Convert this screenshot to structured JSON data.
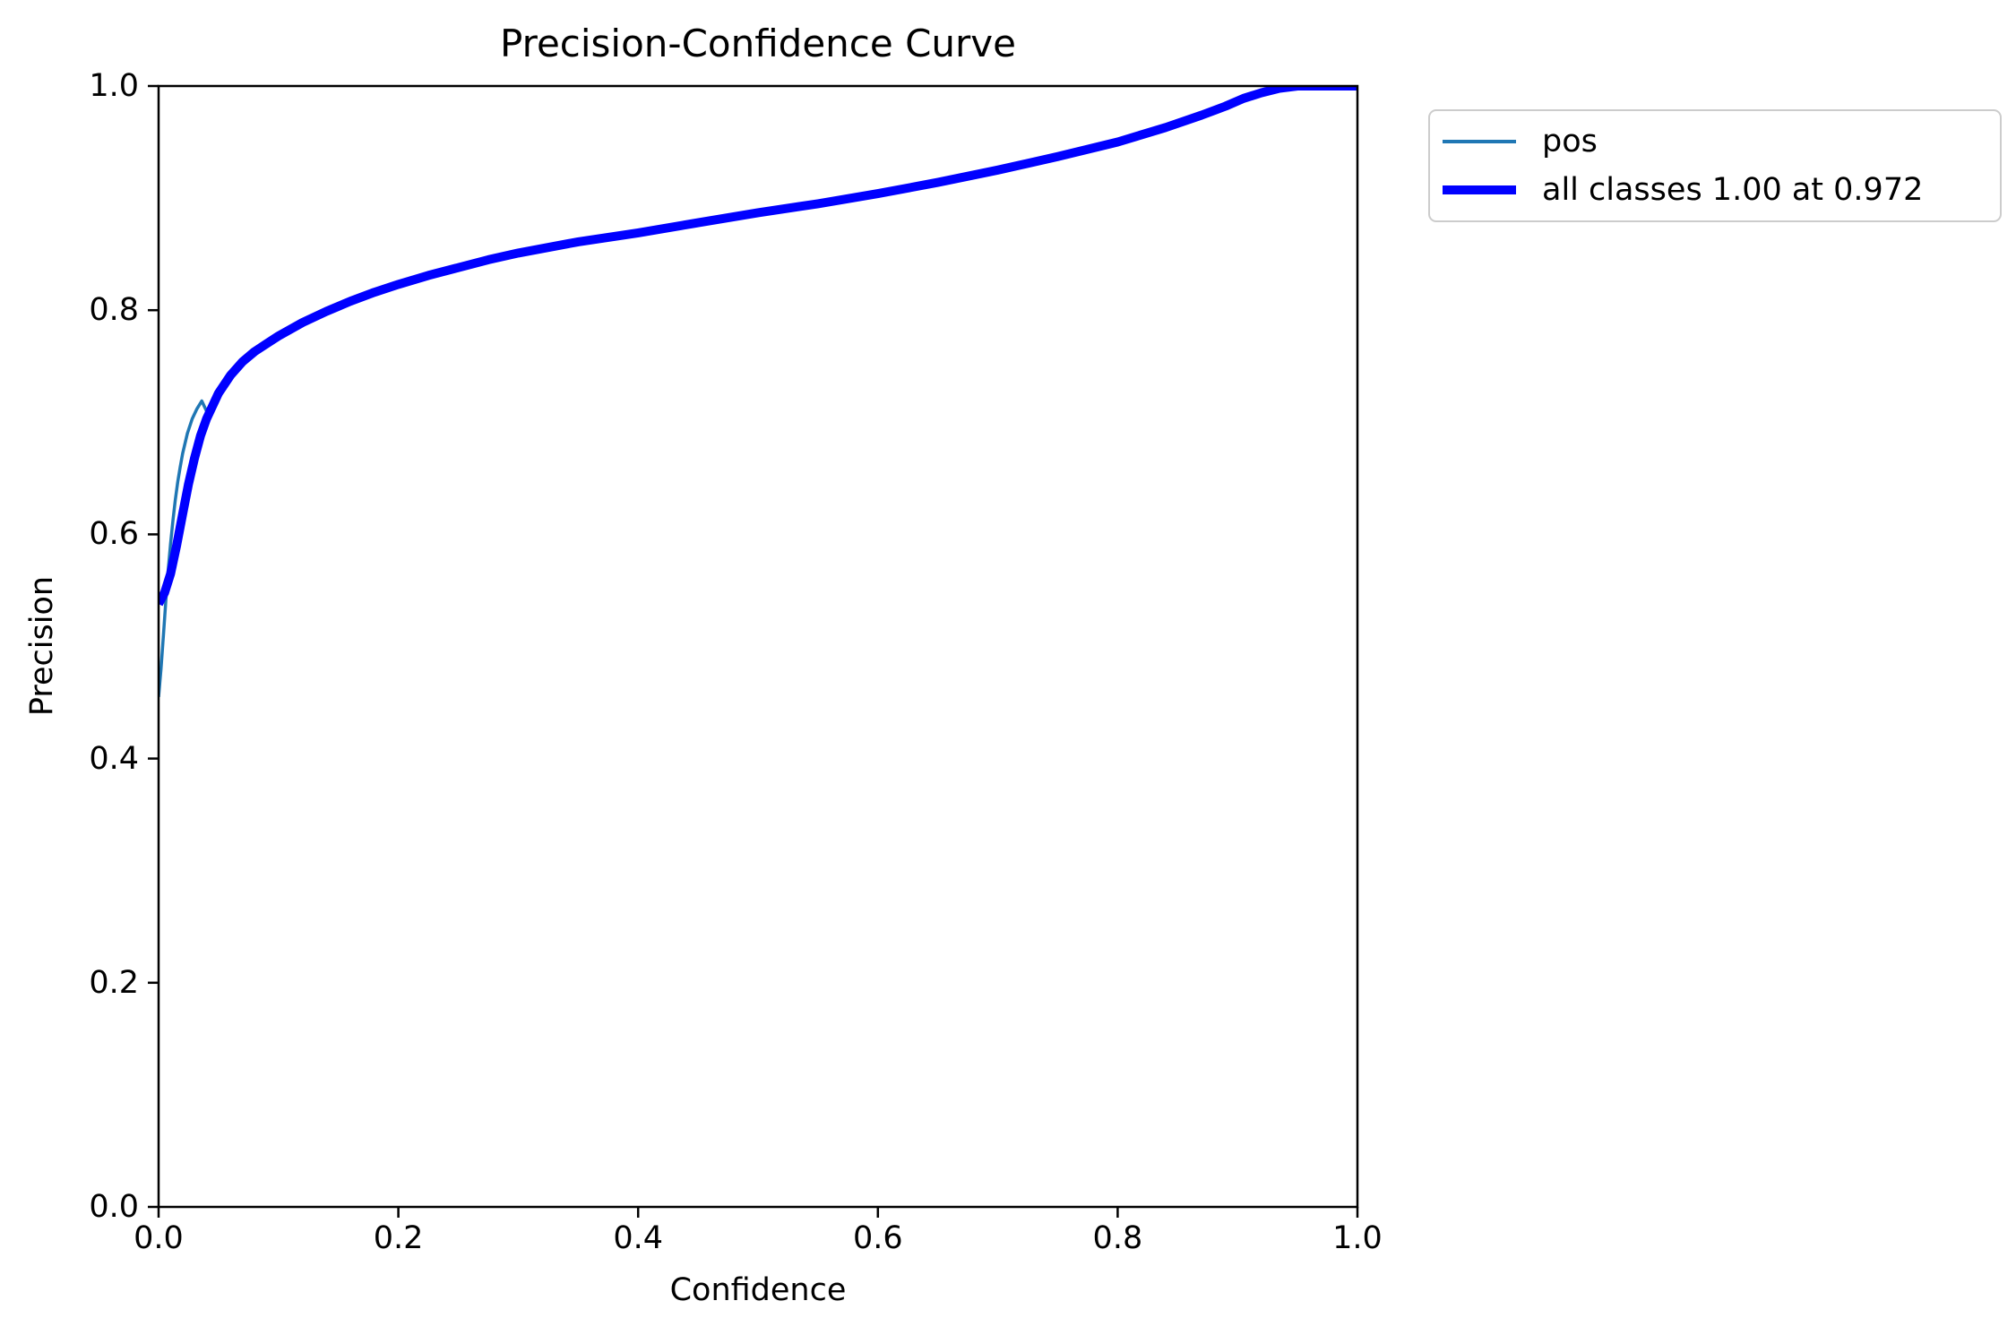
{
  "title": "Precision-Confidence Curve",
  "axes": {
    "xlabel": "Confidence",
    "ylabel": "Precision"
  },
  "legend": {
    "entries": [
      {
        "label": "pos",
        "color": "#1f77b4",
        "sample_thickness": 3.5
      },
      {
        "label": "all classes 1.00 at 0.972",
        "color": "#0000ff",
        "sample_thickness": 10
      }
    ]
  },
  "chart_data": {
    "type": "line",
    "title": "Precision-Confidence Curve",
    "xlabel": "Confidence",
    "ylabel": "Precision",
    "xlim": [
      0.0,
      1.0
    ],
    "ylim": [
      0.0,
      1.0
    ],
    "x_ticks": [
      "0.0",
      "0.2",
      "0.4",
      "0.6",
      "0.8",
      "1.0"
    ],
    "y_ticks": [
      "0.0",
      "0.2",
      "0.4",
      "0.6",
      "0.8",
      "1.0"
    ],
    "grid": false,
    "legend_position": "outside upper right",
    "series": [
      {
        "name": "pos",
        "color": "#1f77b4",
        "linewidth": 3.5,
        "x": [
          0.0,
          0.002,
          0.004,
          0.006,
          0.008,
          0.01,
          0.012,
          0.014,
          0.016,
          0.018,
          0.02,
          0.024,
          0.028,
          0.032,
          0.036,
          0.04,
          0.045,
          0.05,
          0.06,
          0.07,
          0.08,
          0.09,
          0.1,
          0.12,
          0.14,
          0.16,
          0.18,
          0.2,
          0.225,
          0.25,
          0.275,
          0.3,
          0.35,
          0.4,
          0.45,
          0.5,
          0.55,
          0.6,
          0.65,
          0.7,
          0.75,
          0.8,
          0.84,
          0.87,
          0.89,
          0.905,
          0.92,
          0.935,
          0.95,
          1.0
        ],
        "y": [
          0.455,
          0.48,
          0.51,
          0.54,
          0.568,
          0.592,
          0.613,
          0.631,
          0.647,
          0.66,
          0.672,
          0.69,
          0.703,
          0.712,
          0.719,
          0.71,
          0.718,
          0.727,
          0.742,
          0.754,
          0.763,
          0.77,
          0.777,
          0.789,
          0.799,
          0.808,
          0.816,
          0.823,
          0.831,
          0.838,
          0.845,
          0.851,
          0.861,
          0.869,
          0.878,
          0.887,
          0.895,
          0.904,
          0.914,
          0.925,
          0.937,
          0.95,
          0.963,
          0.974,
          0.982,
          0.989,
          0.994,
          0.998,
          1.0,
          1.0
        ]
      },
      {
        "name": "all classes",
        "color": "#0000ff",
        "linewidth": 10,
        "x": [
          0.0,
          0.005,
          0.01,
          0.015,
          0.02,
          0.025,
          0.03,
          0.035,
          0.04,
          0.05,
          0.06,
          0.07,
          0.08,
          0.09,
          0.1,
          0.12,
          0.14,
          0.16,
          0.18,
          0.2,
          0.225,
          0.25,
          0.275,
          0.3,
          0.35,
          0.4,
          0.45,
          0.5,
          0.55,
          0.6,
          0.65,
          0.7,
          0.75,
          0.8,
          0.84,
          0.87,
          0.89,
          0.905,
          0.92,
          0.935,
          0.95,
          1.0
        ],
        "y": [
          0.538,
          0.548,
          0.565,
          0.59,
          0.618,
          0.645,
          0.668,
          0.688,
          0.703,
          0.726,
          0.742,
          0.754,
          0.763,
          0.77,
          0.777,
          0.789,
          0.799,
          0.808,
          0.816,
          0.823,
          0.831,
          0.838,
          0.845,
          0.851,
          0.861,
          0.869,
          0.878,
          0.887,
          0.895,
          0.904,
          0.914,
          0.925,
          0.937,
          0.95,
          0.963,
          0.974,
          0.982,
          0.989,
          0.994,
          0.998,
          1.0,
          1.0
        ]
      }
    ]
  }
}
